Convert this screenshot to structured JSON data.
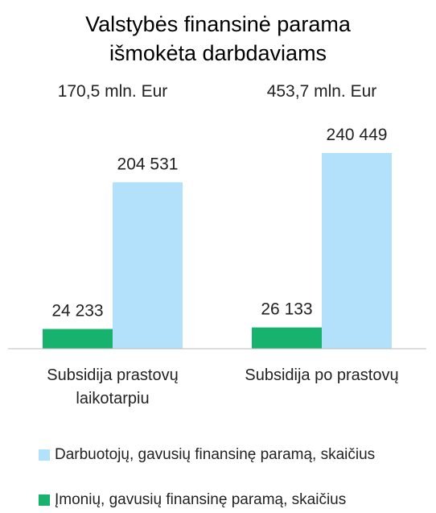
{
  "chart_data": {
    "type": "bar",
    "title": "Valstybės finansinė parama išmokėta darbdaviams",
    "categories": [
      "Subsidija prastovų laikotarpiu",
      "Subsidija po prastovų"
    ],
    "annotations": [
      "170,5 mln. Eur",
      "453,7 mln. Eur"
    ],
    "series": [
      {
        "name": "Įmonių, gavusių finansinę paramą, skaičius",
        "color": "#16b26e",
        "values": [
          24233,
          26133
        ],
        "value_labels": [
          "24 233",
          "26 133"
        ]
      },
      {
        "name": "Darbuotojų, gavusių finansinę paramą, skaičius",
        "color": "#b3e1fc",
        "values": [
          204531,
          240449
        ],
        "value_labels": [
          "204 531",
          "240 449"
        ]
      }
    ]
  }
}
